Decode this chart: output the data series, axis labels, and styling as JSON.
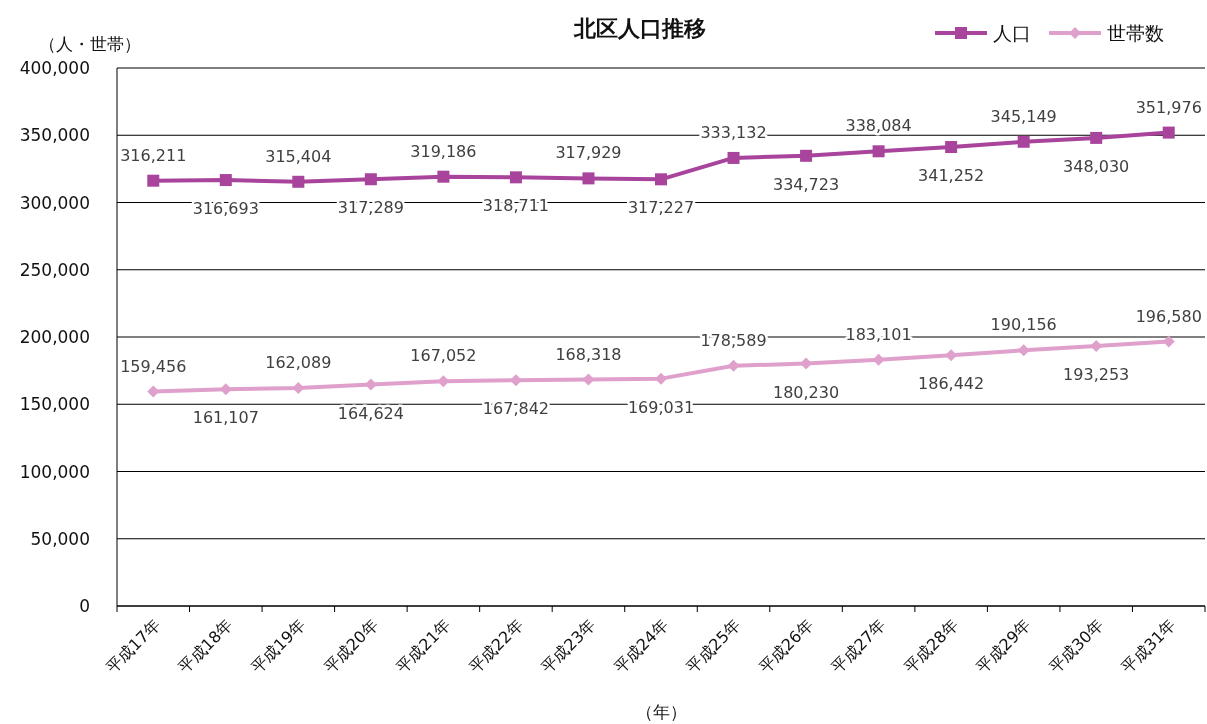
{
  "chart_data": {
    "type": "line",
    "title": "北区人口推移",
    "ylabel": "（人・世帯）",
    "xlabel": "（年）",
    "categories": [
      "平成17年",
      "平成18年",
      "平成19年",
      "平成20年",
      "平成21年",
      "平成22年",
      "平成23年",
      "平成24年",
      "平成25年",
      "平成26年",
      "平成27年",
      "平成28年",
      "平成29年",
      "平成30年",
      "平成31年"
    ],
    "series": [
      {
        "name": "人口",
        "color": "#a8449c",
        "marker": "square",
        "values": [
          316211,
          316693,
          315404,
          317289,
          319186,
          318711,
          317929,
          317227,
          333132,
          334723,
          338084,
          341252,
          345149,
          348030,
          351976
        ],
        "value_labels": [
          "316,211",
          "316,693",
          "315,404",
          "317,289",
          "319,186",
          "318,711",
          "317,929",
          "317,227",
          "333,132",
          "334,723",
          "338,084",
          "341,252",
          "345,149",
          "348,030",
          "351,976"
        ]
      },
      {
        "name": "世帯数",
        "color": "#e0a0cc",
        "marker": "diamond",
        "values": [
          159456,
          161107,
          162089,
          164624,
          167052,
          167842,
          168318,
          169031,
          178589,
          180230,
          183101,
          186442,
          190156,
          193253,
          196580
        ],
        "value_labels": [
          "159,456",
          "161,107",
          "162,089",
          "164,624",
          "167,052",
          "167,842",
          "168,318",
          "169,031",
          "178,589",
          "180,230",
          "183,101",
          "186,442",
          "190,156",
          "193,253",
          "196,580"
        ]
      }
    ],
    "ylim": [
      0,
      400000
    ],
    "yticks": [
      {
        "value": 0,
        "label": "0"
      },
      {
        "value": 50000,
        "label": "50,000"
      },
      {
        "value": 100000,
        "label": "100,000"
      },
      {
        "value": 150000,
        "label": "150,000"
      },
      {
        "value": 200000,
        "label": "200,000"
      },
      {
        "value": 250000,
        "label": "250,000"
      },
      {
        "value": 300000,
        "label": "300,000"
      },
      {
        "value": 350000,
        "label": "350,000"
      },
      {
        "value": 400000,
        "label": "400,000"
      }
    ],
    "grid": "y",
    "legend": "top right"
  }
}
